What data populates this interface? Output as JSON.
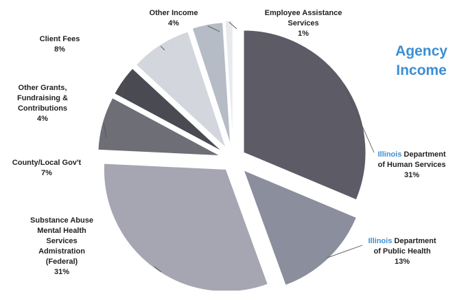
{
  "chart_data": {
    "type": "pie",
    "title": "Agency Income",
    "title_color": "#3b8ed4",
    "slices": [
      {
        "label": "Illinois Department of Human Services",
        "label_lines": [
          "Illinois Department",
          "of Human Services"
        ],
        "label_colored_word": "Illinois",
        "value": 31,
        "value_label": "31%",
        "color": "#5d5b66"
      },
      {
        "label": "Illinois Department of Public Health",
        "label_lines": [
          "Illinois Department",
          "of Public Health"
        ],
        "label_colored_word": "Illinois",
        "value": 13,
        "value_label": "13%",
        "color": "#8b8e9c"
      },
      {
        "label": "Substance Abuse Mental Health Services Admistration (Federal)",
        "label_lines": [
          "Substance Abuse",
          "Mental Health",
          "Services",
          "Admistration",
          "(Federal)"
        ],
        "value": 31,
        "value_label": "31%",
        "color": "#a5a6b2"
      },
      {
        "label": "County/Local Gov't",
        "label_lines": [
          "County/Local Gov't"
        ],
        "value": 7,
        "value_label": "7%",
        "color": "#6e6e76"
      },
      {
        "label": "Other Grants, Fundraising & Contributions",
        "label_lines": [
          "Other Grants,",
          "Fundraising &",
          "Contributions"
        ],
        "value": 4,
        "value_label": "4%",
        "color": "#4a4a52"
      },
      {
        "label": "Client Fees",
        "label_lines": [
          "Client Fees"
        ],
        "value": 8,
        "value_label": "8%",
        "color": "#d3d6dc"
      },
      {
        "label": "Other Income",
        "label_lines": [
          "Other Income"
        ],
        "value": 4,
        "value_label": "4%",
        "color": "#b5bcc6"
      },
      {
        "label": "Employee Assistance Services",
        "label_lines": [
          "Employee Assistance",
          "Services"
        ],
        "value": 1,
        "value_label": "1%",
        "color": "#e8eaee"
      }
    ],
    "label_highlight_color": "#3b8ed4",
    "pct_color": "#3b8ed4"
  }
}
